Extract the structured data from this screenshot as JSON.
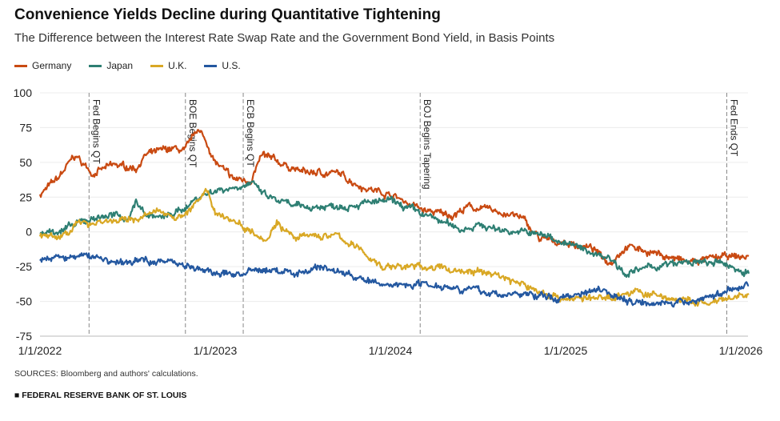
{
  "chart_data": {
    "type": "line",
    "title": "Convenience Yields Decline during Quantitative Tightening",
    "subtitle": "The Difference between the Interest Rate Swap Rate and the Government Bond Yield, in Basis Points",
    "ylim": [
      -75,
      100
    ],
    "yticks": [
      100,
      75,
      50,
      25,
      0,
      -25,
      -50,
      -75
    ],
    "xlim": [
      2022.0,
      2026.05
    ],
    "xticks": [
      {
        "t": 2022,
        "label": "1/1/2022"
      },
      {
        "t": 2023,
        "label": "1/1/2023"
      },
      {
        "t": 2024,
        "label": "1/1/2024"
      },
      {
        "t": 2025,
        "label": "1/1/2025"
      },
      {
        "t": 2026,
        "label": "1/1/2026"
      }
    ],
    "events": [
      {
        "t": 2022.28,
        "label": "Fed Begins QT"
      },
      {
        "t": 2022.83,
        "label": "BOE Begins QT"
      },
      {
        "t": 2023.16,
        "label": "ECB Begins QT"
      },
      {
        "t": 2024.17,
        "label": "BOJ Begins Tapering"
      },
      {
        "t": 2025.92,
        "label": "Fed Ends QT"
      }
    ],
    "series": [
      {
        "name": "Germany",
        "color": "#c94a12",
        "points": [
          [
            2022.0,
            27
          ],
          [
            2022.1,
            38
          ],
          [
            2022.2,
            55
          ],
          [
            2022.3,
            42
          ],
          [
            2022.42,
            48
          ],
          [
            2022.55,
            46
          ],
          [
            2022.6,
            55
          ],
          [
            2022.75,
            60
          ],
          [
            2022.83,
            58
          ],
          [
            2022.9,
            75
          ],
          [
            2022.96,
            62
          ],
          [
            2023.0,
            50
          ],
          [
            2023.1,
            38
          ],
          [
            2023.2,
            37
          ],
          [
            2023.27,
            55
          ],
          [
            2023.4,
            48
          ],
          [
            2023.5,
            43
          ],
          [
            2023.7,
            42
          ],
          [
            2023.85,
            32
          ],
          [
            2024.0,
            27
          ],
          [
            2024.2,
            15
          ],
          [
            2024.35,
            12
          ],
          [
            2024.45,
            18
          ],
          [
            2024.6,
            15
          ],
          [
            2024.75,
            10
          ],
          [
            2024.85,
            -5
          ],
          [
            2025.0,
            -8
          ],
          [
            2025.15,
            -12
          ],
          [
            2025.25,
            -22
          ],
          [
            2025.35,
            -10
          ],
          [
            2025.5,
            -15
          ],
          [
            2025.7,
            -22
          ],
          [
            2025.9,
            -18
          ],
          [
            2026.05,
            -18
          ]
        ]
      },
      {
        "name": "Japan",
        "color": "#2e7f73",
        "points": [
          [
            2022.0,
            -1
          ],
          [
            2022.15,
            2
          ],
          [
            2022.3,
            10
          ],
          [
            2022.4,
            12
          ],
          [
            2022.5,
            10
          ],
          [
            2022.55,
            22
          ],
          [
            2022.6,
            13
          ],
          [
            2022.7,
            10
          ],
          [
            2022.8,
            15
          ],
          [
            2022.9,
            25
          ],
          [
            2023.0,
            30
          ],
          [
            2023.1,
            32
          ],
          [
            2023.2,
            35
          ],
          [
            2023.3,
            25
          ],
          [
            2023.45,
            18
          ],
          [
            2023.6,
            18
          ],
          [
            2023.8,
            20
          ],
          [
            2024.0,
            22
          ],
          [
            2024.2,
            12
          ],
          [
            2024.4,
            2
          ],
          [
            2024.5,
            5
          ],
          [
            2024.6,
            2
          ],
          [
            2024.75,
            0
          ],
          [
            2024.9,
            -3
          ],
          [
            2025.0,
            -8
          ],
          [
            2025.15,
            -15
          ],
          [
            2025.25,
            -18
          ],
          [
            2025.35,
            -30
          ],
          [
            2025.5,
            -25
          ],
          [
            2025.7,
            -22
          ],
          [
            2025.9,
            -23
          ],
          [
            2026.05,
            -30
          ]
        ]
      },
      {
        "name": "U.K.",
        "color": "#d9a825",
        "points": [
          [
            2022.0,
            -2
          ],
          [
            2022.1,
            -5
          ],
          [
            2022.2,
            5
          ],
          [
            2022.35,
            8
          ],
          [
            2022.5,
            8
          ],
          [
            2022.7,
            15
          ],
          [
            2022.8,
            10
          ],
          [
            2022.95,
            28
          ],
          [
            2023.0,
            15
          ],
          [
            2023.15,
            5
          ],
          [
            2023.3,
            -5
          ],
          [
            2023.35,
            8
          ],
          [
            2023.45,
            -5
          ],
          [
            2023.55,
            -3
          ],
          [
            2023.7,
            -3
          ],
          [
            2023.85,
            -15
          ],
          [
            2023.95,
            -25
          ],
          [
            2024.2,
            -25
          ],
          [
            2024.4,
            -28
          ],
          [
            2024.6,
            -30
          ],
          [
            2024.75,
            -38
          ],
          [
            2024.9,
            -45
          ],
          [
            2025.0,
            -48
          ],
          [
            2025.2,
            -48
          ],
          [
            2025.4,
            -43
          ],
          [
            2025.6,
            -48
          ],
          [
            2025.8,
            -52
          ],
          [
            2025.9,
            -50
          ],
          [
            2026.05,
            -45
          ]
        ]
      },
      {
        "name": "U.S.",
        "color": "#2458a0",
        "points": [
          [
            2022.0,
            -20
          ],
          [
            2022.3,
            -17
          ],
          [
            2022.45,
            -23
          ],
          [
            2022.6,
            -20
          ],
          [
            2022.8,
            -22
          ],
          [
            2022.9,
            -27
          ],
          [
            2023.0,
            -30
          ],
          [
            2023.15,
            -30
          ],
          [
            2023.3,
            -27
          ],
          [
            2023.45,
            -30
          ],
          [
            2023.6,
            -25
          ],
          [
            2023.75,
            -30
          ],
          [
            2023.9,
            -37
          ],
          [
            2024.0,
            -38
          ],
          [
            2024.2,
            -37
          ],
          [
            2024.4,
            -40
          ],
          [
            2024.6,
            -45
          ],
          [
            2024.8,
            -45
          ],
          [
            2024.95,
            -48
          ],
          [
            2025.05,
            -45
          ],
          [
            2025.2,
            -40
          ],
          [
            2025.35,
            -50
          ],
          [
            2025.5,
            -50
          ],
          [
            2025.65,
            -52
          ],
          [
            2025.8,
            -47
          ],
          [
            2025.95,
            -42
          ],
          [
            2026.05,
            -37
          ]
        ]
      }
    ]
  },
  "sources": "SOURCES: Bloomberg and authors' calculations.",
  "footer": "■ FEDERAL RESERVE BANK OF ST. LOUIS"
}
